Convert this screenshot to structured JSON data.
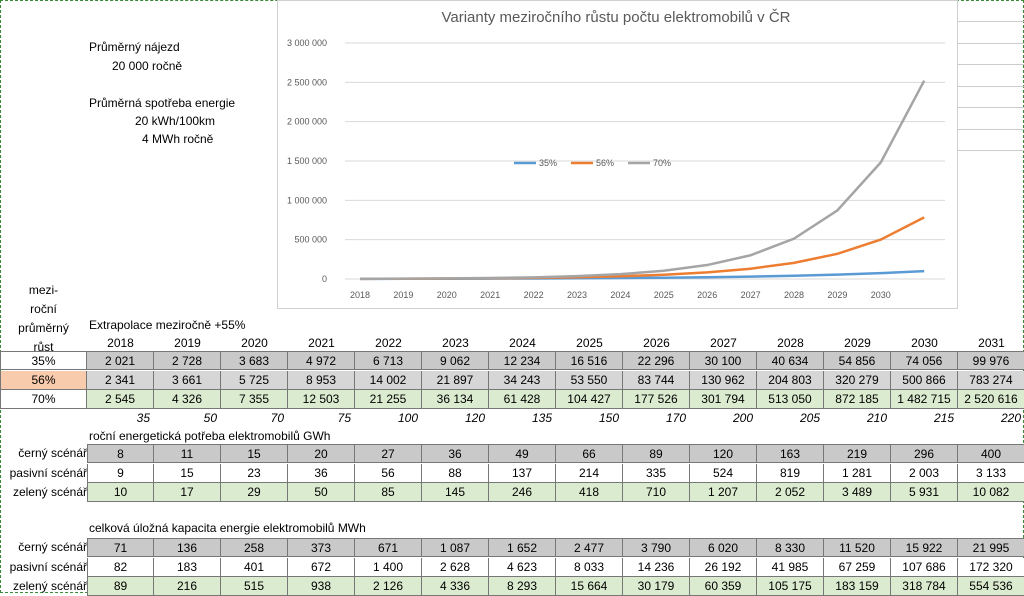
{
  "chart_data": {
    "type": "line",
    "title": "Varianty meziročního růstu počtu elektromobilů v ČR",
    "categories": [
      2018,
      2019,
      2020,
      2021,
      2022,
      2023,
      2024,
      2025,
      2026,
      2027,
      2028,
      2029,
      2030,
      null
    ],
    "series": [
      {
        "name": "35%",
        "color": "#5b9bd5",
        "values": [
          2021,
          2728,
          3683,
          4972,
          6713,
          9062,
          12234,
          16516,
          22296,
          30100,
          40634,
          54856,
          74056,
          99976
        ],
        "value_labels": [
          "2 021",
          "2 728",
          "3 683",
          "4 972",
          "6 713",
          "9 062",
          "12 234",
          "16 516",
          "22 296",
          "30 100",
          "40 634",
          "54 856",
          "74 056",
          "99 976"
        ]
      },
      {
        "name": "56%",
        "color": "#ed7d31",
        "values": [
          2341,
          3661,
          5725,
          8953,
          14002,
          21897,
          34243,
          53550,
          83744,
          130962,
          204803,
          320279,
          500866,
          783274
        ],
        "value_labels": [
          "2 341",
          "3 661",
          "5 725",
          "8 953",
          "14 002",
          "21 897",
          "34 243",
          "53 550",
          "83 744",
          "130 962",
          "204 803",
          "320 279",
          "500 866",
          "783 274"
        ]
      },
      {
        "name": "70%",
        "color": "#a5a5a5",
        "values": [
          2545,
          4326,
          7355,
          12503,
          21255,
          36134,
          61428,
          104427,
          177526,
          301794,
          513050,
          872185,
          1482715,
          2520616
        ],
        "value_labels": [
          "2 545",
          "4 326",
          "7 355",
          "12 503",
          "21 255",
          "36 134",
          "61 428",
          "104 427",
          "177 526",
          "301 794",
          "513 050",
          "872 185",
          "1 482 715",
          "2 520 616"
        ]
      }
    ],
    "ylim": [
      0,
      3000000
    ],
    "yticks": [
      0,
      {
        "value": 500000,
        "label": "500 000"
      },
      {
        "value": 1000000,
        "label": "1 000 000"
      },
      {
        "value": 1500000,
        "label": "1 500 000"
      },
      {
        "value": 2000000,
        "label": "2 000 000"
      },
      {
        "value": 2500000,
        "label": "2 500 000"
      },
      {
        "value": 3000000,
        "label": "3 000 000"
      }
    ],
    "grid": true,
    "legend": "center"
  },
  "notes": {
    "mileage_label": "Průměrný nájezd",
    "mileage": "20 000  ročně",
    "consumption_label": "Průměrná spotřeba energie",
    "consumption": "20  kWh/100km",
    "annual": "4  MWh ročně"
  },
  "table": {
    "row_header": [
      "mezi-",
      "roční",
      "průměrný",
      "růst"
    ],
    "caption": "Extrapolace meziročně +55%",
    "years": [
      2018,
      2019,
      2020,
      2021,
      2022,
      2023,
      2024,
      2025,
      2026,
      2027,
      2028,
      2029,
      2030,
      2031
    ],
    "factors": [
      35,
      50,
      70,
      75,
      100,
      120,
      135,
      150,
      170,
      200,
      205,
      210,
      215,
      220
    ],
    "energy": {
      "title": "roční energetická potřeba elektromobilů GWh",
      "rows": [
        {
          "label": "černý scénář",
          "values": [
            "8",
            "11",
            "15",
            "20",
            "27",
            "36",
            "49",
            "66",
            "89",
            "120",
            "163",
            "219",
            "296",
            "400"
          ]
        },
        {
          "label": "pasivní scénář",
          "values": [
            "9",
            "15",
            "23",
            "36",
            "56",
            "88",
            "137",
            "214",
            "335",
            "524",
            "819",
            "1 281",
            "2 003",
            "3 133"
          ]
        },
        {
          "label": "zelený scénář",
          "values": [
            "10",
            "17",
            "29",
            "50",
            "85",
            "145",
            "246",
            "418",
            "710",
            "1 207",
            "2 052",
            "3 489",
            "5 931",
            "10 082"
          ]
        }
      ]
    },
    "capacity": {
      "title": "celková úložná kapacita energie elektromobilů MWh",
      "rows": [
        {
          "label": "černý scénář",
          "values": [
            "71",
            "136",
            "258",
            "373",
            "671",
            "1 087",
            "1 652",
            "2 477",
            "3 790",
            "6 020",
            "8 330",
            "11 520",
            "15 922",
            "21 995"
          ]
        },
        {
          "label": "pasivní scénář",
          "values": [
            "82",
            "183",
            "401",
            "672",
            "1 400",
            "2 628",
            "4 623",
            "8 033",
            "14 236",
            "26 192",
            "41 985",
            "67 259",
            "107 686",
            "172 320"
          ]
        },
        {
          "label": "zelený scénář",
          "values": [
            "89",
            "216",
            "515",
            "938",
            "2 126",
            "4 336",
            "8 293",
            "15 664",
            "30 179",
            "60 359",
            "105 175",
            "183 159",
            "318 784",
            "554 536"
          ]
        }
      ]
    }
  }
}
